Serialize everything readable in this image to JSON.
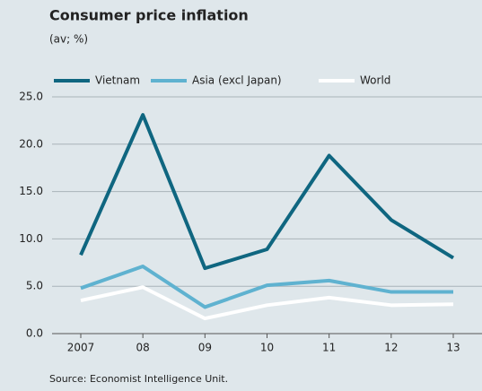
{
  "chart_data": {
    "type": "line",
    "title": "Consumer price inflation",
    "subtitle": "(av; %)",
    "source": "Source: Economist Intelligence Unit.",
    "categories": [
      "2007",
      "08",
      "09",
      "10",
      "11",
      "12",
      "13"
    ],
    "series": [
      {
        "name": "Vietnam",
        "color": "#0f6680",
        "values": [
          8.3,
          23.1,
          6.9,
          8.9,
          18.8,
          12.0,
          8.0
        ]
      },
      {
        "name": "Asia (excl Japan)",
        "color": "#5fb2d0",
        "values": [
          4.8,
          7.1,
          2.8,
          5.1,
          5.6,
          4.4,
          4.4
        ]
      },
      {
        "name": "World",
        "color": "#ffffff",
        "values": [
          3.5,
          4.9,
          1.6,
          3.0,
          3.8,
          3.0,
          3.1
        ]
      }
    ],
    "ylim": [
      0,
      25
    ],
    "yticks": [
      {
        "value": 0,
        "label": "0.0"
      },
      {
        "value": 5,
        "label": "5.0"
      },
      {
        "value": 10,
        "label": "10.0"
      },
      {
        "value": 15,
        "label": "15.0"
      },
      {
        "value": 20,
        "label": "20.0"
      },
      {
        "value": 25,
        "label": "25.0"
      }
    ],
    "grid": true,
    "legend": "top"
  }
}
